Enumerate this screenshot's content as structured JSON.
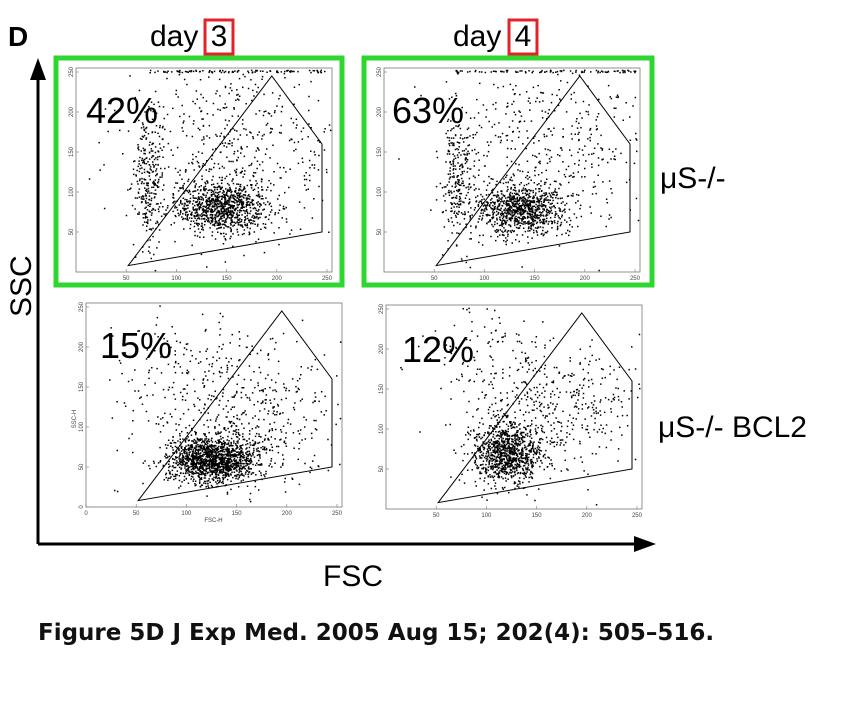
{
  "figure": {
    "panel_letter": "D",
    "caption": "Figure 5D J Exp Med. 2005 Aug 15; 202(4): 505–516.",
    "column_headers": [
      {
        "prefix": "day",
        "number": "3"
      },
      {
        "prefix": "day",
        "number": "4"
      }
    ],
    "row_labels": [
      "μS-/-",
      "μS-/- BCL2"
    ],
    "x_axis_title": "FSC",
    "y_axis_title": "SSC",
    "highlight_color": "#2fd62f",
    "number_box_color": "#e0242a"
  },
  "chart_data": [
    {
      "type": "scatter",
      "title": "",
      "xlabel": "",
      "ylabel": "",
      "xlim": [
        0,
        255
      ],
      "ylim": [
        0,
        255
      ],
      "x_ticks": [
        "50",
        "100",
        "150",
        "200",
        "250"
      ],
      "y_ticks": [
        "50",
        "100",
        "150",
        "200",
        "250"
      ],
      "row": "μS-/-",
      "column": "day 3",
      "annotation": "42%",
      "highlighted": true,
      "gate_polygon": [
        [
          52,
          8
        ],
        [
          195,
          245
        ],
        [
          245,
          160
        ],
        [
          245,
          50
        ]
      ],
      "clusters": [
        {
          "cx": 145,
          "cy": 82,
          "sx": 23,
          "sy": 16,
          "n": 980
        },
        {
          "cx": 72,
          "cy": 118,
          "sx": 8,
          "sy": 42,
          "n": 260
        },
        {
          "cx": 160,
          "cy": 160,
          "sx": 55,
          "sy": 55,
          "n": 500
        }
      ]
    },
    {
      "type": "scatter",
      "title": "",
      "xlabel": "",
      "ylabel": "",
      "xlim": [
        0,
        255
      ],
      "ylim": [
        0,
        255
      ],
      "x_ticks": [
        "50",
        "100",
        "150",
        "200",
        "250"
      ],
      "y_ticks": [
        "50",
        "100",
        "150",
        "200",
        "250"
      ],
      "row": "μS-/-",
      "column": "day 4",
      "annotation": "63%",
      "highlighted": true,
      "gate_polygon": [
        [
          52,
          8
        ],
        [
          195,
          245
        ],
        [
          245,
          160
        ],
        [
          245,
          50
        ]
      ],
      "clusters": [
        {
          "cx": 135,
          "cy": 80,
          "sx": 22,
          "sy": 16,
          "n": 900
        },
        {
          "cx": 72,
          "cy": 115,
          "sx": 8,
          "sy": 42,
          "n": 240
        },
        {
          "cx": 160,
          "cy": 160,
          "sx": 55,
          "sy": 55,
          "n": 460
        }
      ]
    },
    {
      "type": "scatter",
      "title": "",
      "xlabel": "FSC-H",
      "ylabel": "SSC-H",
      "xlim": [
        0,
        255
      ],
      "ylim": [
        0,
        255
      ],
      "x_ticks": [
        "0",
        "50",
        "100",
        "150",
        "200",
        "250"
      ],
      "y_ticks": [
        "0",
        "50",
        "100",
        "150",
        "200",
        "250"
      ],
      "row": "μS-/- BCL2",
      "column": "day 3",
      "annotation": "15%",
      "highlighted": false,
      "gate_polygon": [
        [
          52,
          8
        ],
        [
          195,
          245
        ],
        [
          245,
          160
        ],
        [
          245,
          50
        ]
      ],
      "clusters": [
        {
          "cx": 125,
          "cy": 60,
          "sx": 22,
          "sy": 15,
          "n": 1500
        },
        {
          "cx": 160,
          "cy": 115,
          "sx": 50,
          "sy": 40,
          "n": 420
        },
        {
          "cx": 100,
          "cy": 180,
          "sx": 40,
          "sy": 45,
          "n": 140
        }
      ]
    },
    {
      "type": "scatter",
      "title": "",
      "xlabel": "",
      "ylabel": "",
      "xlim": [
        0,
        255
      ],
      "ylim": [
        0,
        255
      ],
      "x_ticks": [
        "50",
        "100",
        "150",
        "200",
        "250"
      ],
      "y_ticks": [
        "50",
        "100",
        "150",
        "200",
        "250"
      ],
      "row": "μS-/- BCL2",
      "column": "day 4",
      "annotation": "12%",
      "highlighted": false,
      "gate_polygon": [
        [
          52,
          8
        ],
        [
          195,
          245
        ],
        [
          245,
          160
        ],
        [
          245,
          50
        ]
      ],
      "clusters": [
        {
          "cx": 120,
          "cy": 70,
          "sx": 18,
          "sy": 20,
          "n": 1000
        },
        {
          "cx": 170,
          "cy": 130,
          "sx": 45,
          "sy": 35,
          "n": 380
        },
        {
          "cx": 110,
          "cy": 185,
          "sx": 45,
          "sy": 40,
          "n": 120
        }
      ]
    }
  ]
}
